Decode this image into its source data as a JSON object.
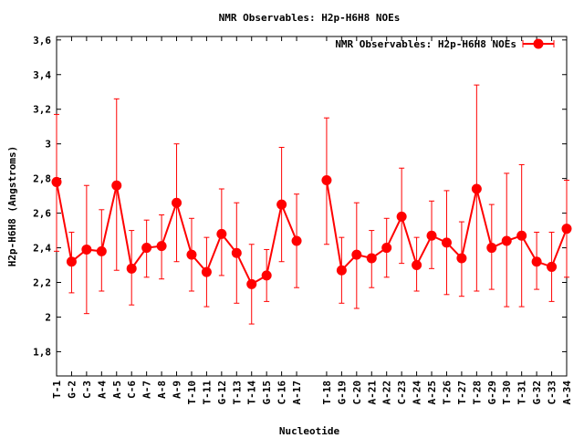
{
  "chart_data": {
    "type": "line",
    "title": "NMR Observables: H2p-H6H8 NOEs",
    "xlabel": "Nucleotide",
    "ylabel": "H2p-H6H8 (Angstroms)",
    "ylim": [
      1.66,
      3.62
    ],
    "yticks": [
      "1,8",
      "2",
      "2,2",
      "2,4",
      "2,6",
      "2,8",
      "3",
      "3,2",
      "3,4",
      "3,6"
    ],
    "ytick_values": [
      1.8,
      2.0,
      2.2,
      2.4,
      2.6,
      2.8,
      3.0,
      3.2,
      3.4,
      3.6
    ],
    "legend_position": "top-right",
    "grid": false,
    "color": "#ff0000",
    "series": [
      {
        "name": "NMR Observables: H2p-H6H8 NOEs",
        "segments": [
          [
            {
              "x": "T-1",
              "y": 2.78,
              "lo": 2.38,
              "hi": 3.17
            },
            {
              "x": "G-2",
              "y": 2.32,
              "lo": 2.14,
              "hi": 2.49
            },
            {
              "x": "C-3",
              "y": 2.39,
              "lo": 2.02,
              "hi": 2.76
            },
            {
              "x": "A-4",
              "y": 2.38,
              "lo": 2.15,
              "hi": 2.62
            },
            {
              "x": "A-5",
              "y": 2.76,
              "lo": 2.27,
              "hi": 3.26
            },
            {
              "x": "C-6",
              "y": 2.28,
              "lo": 2.07,
              "hi": 2.5
            },
            {
              "x": "A-7",
              "y": 2.4,
              "lo": 2.23,
              "hi": 2.56
            },
            {
              "x": "A-8",
              "y": 2.41,
              "lo": 2.22,
              "hi": 2.59
            },
            {
              "x": "A-9",
              "y": 2.66,
              "lo": 2.32,
              "hi": 3.0
            },
            {
              "x": "T-10",
              "y": 2.36,
              "lo": 2.15,
              "hi": 2.57
            },
            {
              "x": "T-11",
              "y": 2.26,
              "lo": 2.06,
              "hi": 2.46
            },
            {
              "x": "G-12",
              "y": 2.48,
              "lo": 2.24,
              "hi": 2.74
            },
            {
              "x": "T-13",
              "y": 2.37,
              "lo": 2.08,
              "hi": 2.66
            },
            {
              "x": "T-14",
              "y": 2.19,
              "lo": 1.96,
              "hi": 2.42
            },
            {
              "x": "G-15",
              "y": 2.24,
              "lo": 2.09,
              "hi": 2.39
            },
            {
              "x": "C-16",
              "y": 2.65,
              "lo": 2.32,
              "hi": 2.98
            },
            {
              "x": "A-17",
              "y": 2.44,
              "lo": 2.17,
              "hi": 2.71
            }
          ],
          [
            {
              "x": "T-18",
              "y": 2.79,
              "lo": 2.42,
              "hi": 3.15
            },
            {
              "x": "G-19",
              "y": 2.27,
              "lo": 2.08,
              "hi": 2.46
            },
            {
              "x": "C-20",
              "y": 2.36,
              "lo": 2.05,
              "hi": 2.66
            },
            {
              "x": "A-21",
              "y": 2.34,
              "lo": 2.17,
              "hi": 2.5
            },
            {
              "x": "A-22",
              "y": 2.4,
              "lo": 2.23,
              "hi": 2.57
            },
            {
              "x": "C-23",
              "y": 2.58,
              "lo": 2.31,
              "hi": 2.86
            },
            {
              "x": "A-24",
              "y": 2.3,
              "lo": 2.15,
              "hi": 2.46
            },
            {
              "x": "A-25",
              "y": 2.47,
              "lo": 2.28,
              "hi": 2.67
            },
            {
              "x": "T-26",
              "y": 2.43,
              "lo": 2.13,
              "hi": 2.73
            },
            {
              "x": "T-27",
              "y": 2.34,
              "lo": 2.12,
              "hi": 2.55
            },
            {
              "x": "T-28",
              "y": 2.74,
              "lo": 2.15,
              "hi": 3.34
            },
            {
              "x": "G-29",
              "y": 2.4,
              "lo": 2.16,
              "hi": 2.65
            },
            {
              "x": "T-30",
              "y": 2.44,
              "lo": 2.06,
              "hi": 2.83
            },
            {
              "x": "T-31",
              "y": 2.47,
              "lo": 2.06,
              "hi": 2.88
            },
            {
              "x": "G-32",
              "y": 2.32,
              "lo": 2.16,
              "hi": 2.49
            },
            {
              "x": "C-33",
              "y": 2.29,
              "lo": 2.09,
              "hi": 2.49
            },
            {
              "x": "A-34",
              "y": 2.51,
              "lo": 2.23,
              "hi": 2.79
            }
          ]
        ]
      }
    ],
    "categories": [
      "T-1",
      "G-2",
      "C-3",
      "A-4",
      "A-5",
      "C-6",
      "A-7",
      "A-8",
      "A-9",
      "T-10",
      "T-11",
      "G-12",
      "T-13",
      "T-14",
      "G-15",
      "C-16",
      "A-17",
      "T-18",
      "G-19",
      "C-20",
      "A-21",
      "A-22",
      "C-23",
      "A-24",
      "A-25",
      "T-26",
      "T-27",
      "T-28",
      "G-29",
      "T-30",
      "T-31",
      "G-32",
      "C-33",
      "A-34"
    ]
  }
}
